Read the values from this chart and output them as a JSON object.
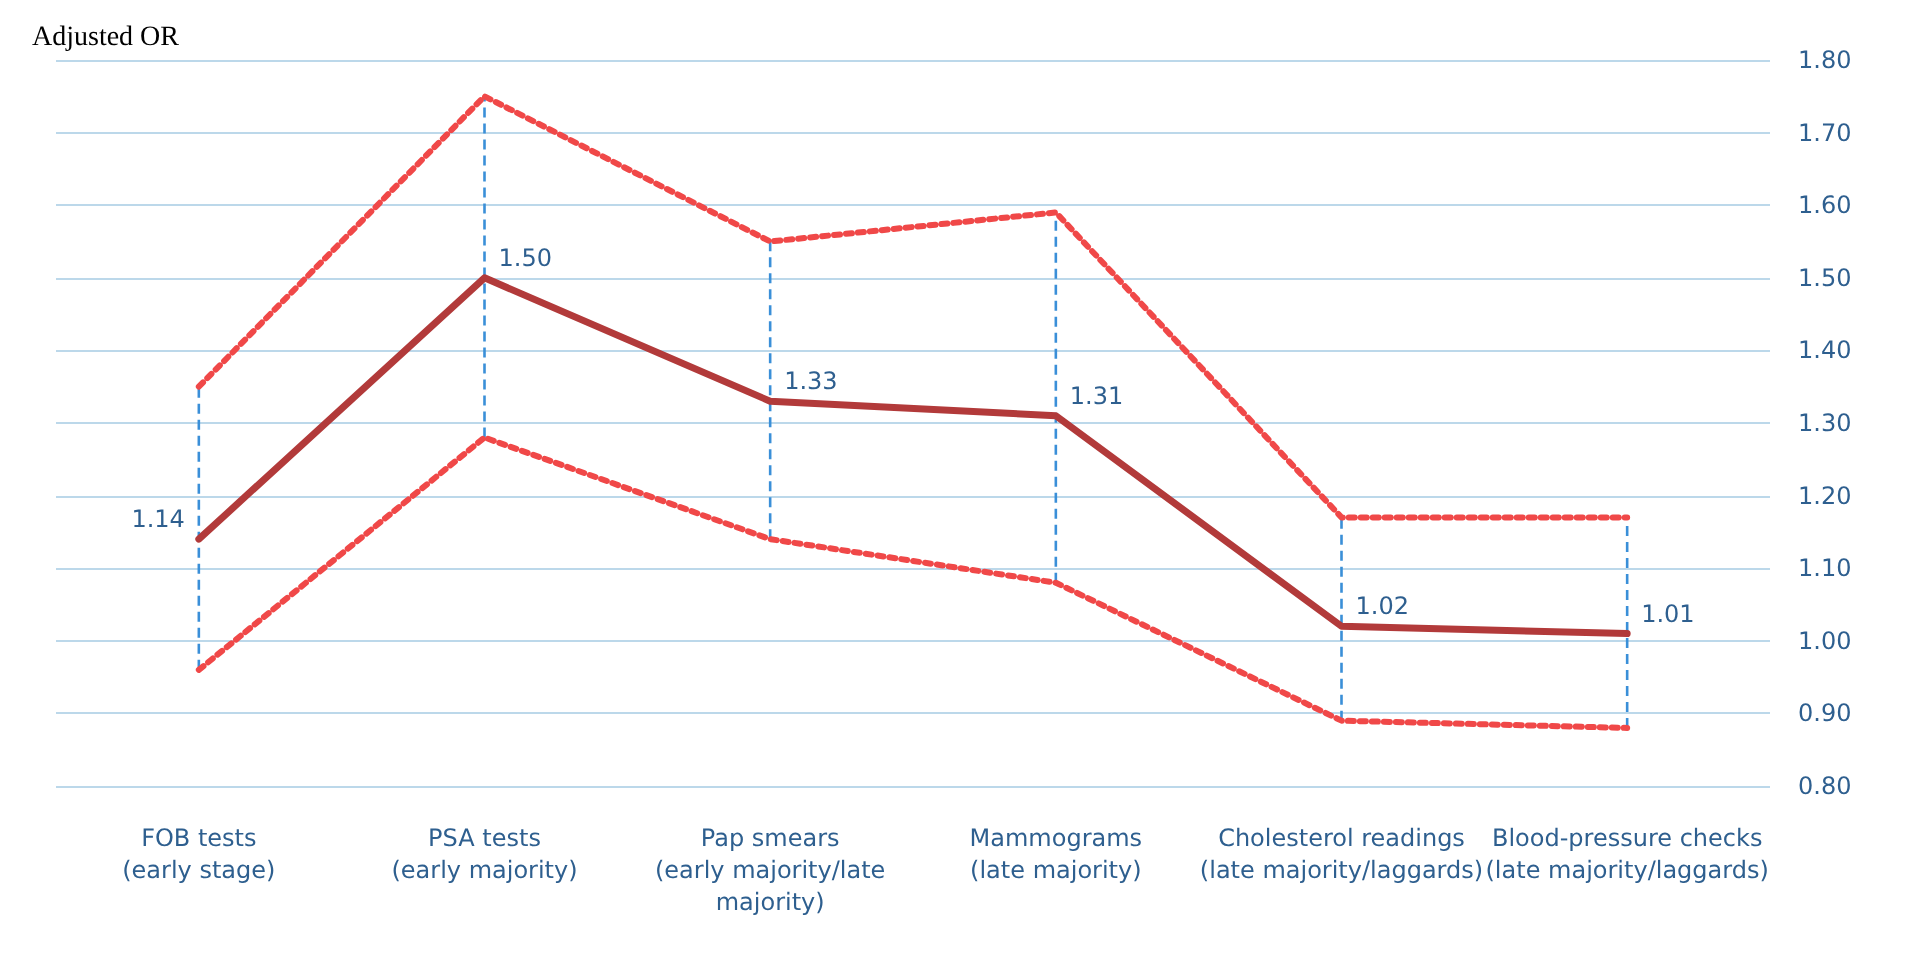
{
  "chart_data": {
    "type": "line",
    "ylabel": "Adjusted OR",
    "categories": [
      "FOB tests\n(early stage)",
      "PSA tests\n(early majority)",
      "Pap smears\n(early majority/late\nmajority)",
      "Mammograms\n(late majority)",
      "Cholesterol readings\n(late majority/laggards)",
      "Blood-pressure checks\n(late majority/laggards)"
    ],
    "series": [
      {
        "color": "#b23a3a",
        "values": [
          1.14,
          1.5,
          1.33,
          1.31,
          1.02,
          1.01
        ],
        "value_labels": [
          "1.14",
          "1.50",
          "1.33",
          "1.31",
          "1.02",
          "1.01"
        ],
        "errors": [
          [
            0.96,
            1.35
          ],
          [
            1.28,
            1.75
          ],
          [
            1.14,
            1.55
          ],
          [
            1.08,
            1.59
          ],
          [
            0.89,
            1.17
          ],
          [
            0.88,
            1.17
          ]
        ]
      },
      {
        "color": "#f04848",
        "values": [
          1.35,
          1.75,
          1.55,
          1.59,
          1.17,
          1.17
        ],
        "line_style": "dotted"
      },
      {
        "color": "#f04848",
        "values": [
          0.96,
          1.28,
          1.14,
          1.08,
          0.89,
          0.88
        ],
        "line_style": "dotted"
      }
    ],
    "ylim": [
      0.8,
      1.8
    ],
    "yticks": [
      {
        "value": 0.8,
        "label": "0.80"
      },
      {
        "value": 0.9,
        "label": "0.90"
      },
      {
        "value": 1.0,
        "label": "1.00"
      },
      {
        "value": 1.1,
        "label": "1.10"
      },
      {
        "value": 1.2,
        "label": "1.20"
      },
      {
        "value": 1.3,
        "label": "1.30"
      },
      {
        "value": 1.4,
        "label": "1.40"
      },
      {
        "value": 1.5,
        "label": "1.50"
      },
      {
        "value": 1.6,
        "label": "1.60"
      },
      {
        "value": 1.7,
        "label": "1.70"
      },
      {
        "value": 1.8,
        "label": "1.80"
      }
    ],
    "grid": "y",
    "marker": "none"
  }
}
